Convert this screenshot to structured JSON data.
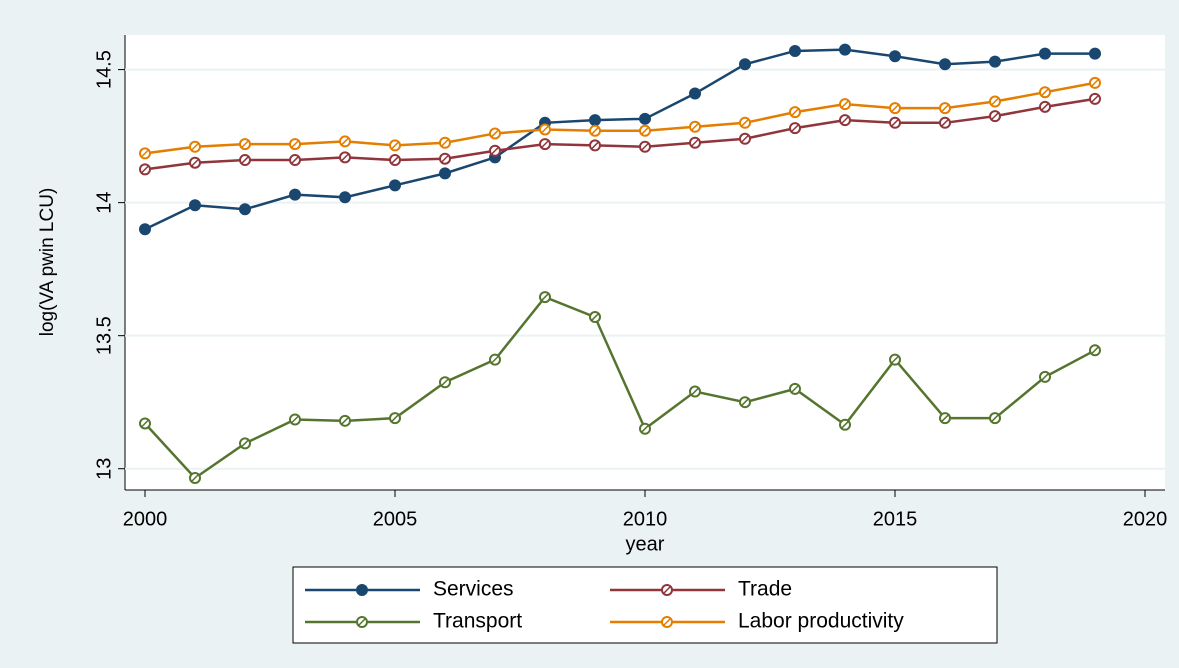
{
  "chart_data": {
    "type": "line",
    "x_label": "year",
    "y_label": "log(VA pwin LCU)",
    "x": [
      2000,
      2001,
      2002,
      2003,
      2004,
      2005,
      2006,
      2007,
      2008,
      2009,
      2010,
      2011,
      2012,
      2013,
      2014,
      2015,
      2016,
      2017,
      2018,
      2019
    ],
    "series": [
      {
        "name": "Services",
        "color": "#1a476f",
        "marker": "solid",
        "values": [
          13.9,
          13.99,
          13.975,
          14.03,
          14.02,
          14.065,
          14.11,
          14.17,
          14.3,
          14.31,
          14.315,
          14.41,
          14.52,
          14.57,
          14.575,
          14.55,
          14.52,
          14.53,
          14.56,
          14.56
        ]
      },
      {
        "name": "Trade",
        "color": "#90353b",
        "marker": "hollow",
        "values": [
          14.125,
          14.15,
          14.16,
          14.16,
          14.17,
          14.16,
          14.165,
          14.195,
          14.22,
          14.215,
          14.21,
          14.225,
          14.24,
          14.28,
          14.31,
          14.3,
          14.3,
          14.325,
          14.36,
          14.39
        ]
      },
      {
        "name": "Transport",
        "color": "#55752f",
        "marker": "hollow",
        "values": [
          13.17,
          12.965,
          13.095,
          13.185,
          13.18,
          13.19,
          13.325,
          13.41,
          13.645,
          13.57,
          13.15,
          13.29,
          13.25,
          13.3,
          13.165,
          13.41,
          13.19,
          13.19,
          13.345,
          13.445
        ]
      },
      {
        "name": "Labor productivity",
        "color": "#e37e00",
        "marker": "hollow",
        "values": [
          14.185,
          14.21,
          14.22,
          14.22,
          14.23,
          14.215,
          14.225,
          14.26,
          14.275,
          14.27,
          14.27,
          14.285,
          14.3,
          14.34,
          14.37,
          14.355,
          14.355,
          14.38,
          14.415,
          14.45
        ]
      }
    ],
    "xlim": [
      1999.6,
      2020.4
    ],
    "xticks": [
      2000,
      2005,
      2010,
      2015,
      2020
    ],
    "ylim": [
      12.92,
      14.63
    ],
    "yticks": [
      13,
      13.5,
      14,
      14.5
    ],
    "grid": true,
    "legend": "bottom"
  }
}
